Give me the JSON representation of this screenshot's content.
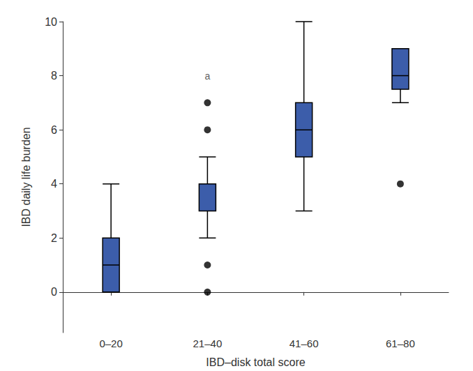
{
  "chart_data": {
    "type": "boxplot",
    "x_label": "IBD–disk total score",
    "y_label": "IBD daily life burden",
    "categories": [
      "0–20",
      "21–40",
      "41–60",
      "61–80"
    ],
    "stats": [
      [
        0,
        0,
        1,
        2,
        4
      ],
      [
        2,
        3,
        4,
        4,
        5
      ],
      [
        3,
        5,
        6,
        7,
        10
      ],
      [
        7,
        7.5,
        8,
        9,
        9
      ]
    ],
    "outliers": [
      [],
      [
        7,
        6,
        1,
        0
      ],
      [],
      [
        4
      ]
    ],
    "color": "#3c5daa",
    "ylim": [
      -1.5,
      10
    ],
    "yticks": [
      0,
      2,
      4,
      6,
      8,
      10
    ],
    "grid": false,
    "annotations": [
      {
        "text": "a",
        "x": "21–40",
        "y": 8
      }
    ]
  }
}
